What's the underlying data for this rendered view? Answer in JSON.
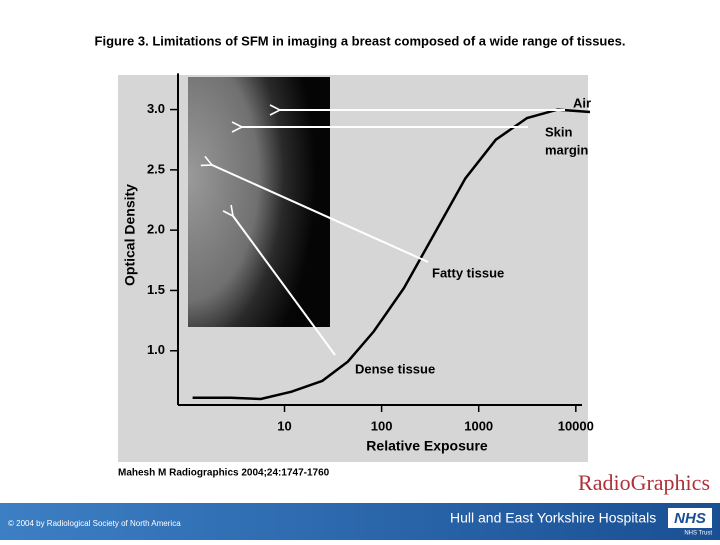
{
  "header": {
    "title": "Figure 3.  Limitations of SFM in imaging a breast composed of a wide range of tissues."
  },
  "chart_data": {
    "type": "line",
    "log_x": true,
    "x_label": "Relative Exposure",
    "y_label": "Optical Density",
    "x": [
      1.13,
      2.8,
      5.7,
      11.8,
      24.5,
      45,
      83,
      170,
      355,
      730,
      1500,
      3150,
      6500,
      14000
    ],
    "values": [
      0.61,
      0.61,
      0.6,
      0.66,
      0.75,
      0.91,
      1.16,
      1.52,
      1.98,
      2.43,
      2.75,
      2.93,
      3.0,
      2.98
    ],
    "color": "#000000",
    "xlim": [
      0.8,
      14000
    ],
    "ylim": [
      0.55,
      3.3
    ],
    "xticks": [
      10,
      100,
      1000,
      10000
    ],
    "yticks": [
      {
        "value": 1,
        "label": "1.0"
      },
      {
        "value": 1.5,
        "label": "1.5"
      },
      {
        "value": 2,
        "label": "2.0"
      },
      {
        "value": 2.5,
        "label": "2.5"
      },
      {
        "value": 3,
        "label": "3.0"
      }
    ],
    "annotations": [
      "Air",
      "Skin",
      "margin",
      "Fatty tissue",
      "Dense tissue"
    ]
  },
  "citation": "Mahesh M Radiographics 2004;24:1747-1760",
  "logo": "RadioGraphics",
  "footer": {
    "copyright": "© 2004 by Radiological Society of North America",
    "hospital": "Hull and East Yorkshire Hospitals",
    "nhs": "NHS",
    "trust": "NHS Trust"
  }
}
